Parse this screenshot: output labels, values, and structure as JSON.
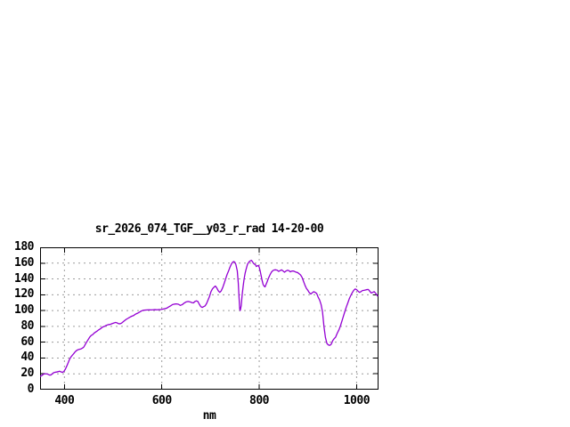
{
  "page": {
    "background": "#ffffff"
  },
  "chart_data": {
    "type": "line",
    "title": "sr_2026_074_TGF__y03_r_rad 14-20-00",
    "xlabel": "nm",
    "ylabel": "",
    "xlim": [
      350,
      1045
    ],
    "ylim": [
      0,
      180
    ],
    "xticks": [
      400,
      600,
      800,
      1000
    ],
    "yticks": [
      0,
      20,
      40,
      60,
      80,
      100,
      120,
      140,
      160,
      180
    ],
    "grid": true,
    "legend": "none",
    "style": {
      "line_color": "#9400D3",
      "grid_color": "#9c9c9c",
      "frame_color": "#000000",
      "text_color": "#000000",
      "background": "#ffffff"
    },
    "series": [
      {
        "points": [
          [
            351,
            17
          ],
          [
            354,
            18
          ],
          [
            357,
            19.5
          ],
          [
            360,
            20
          ],
          [
            363,
            20
          ],
          [
            366,
            19.5
          ],
          [
            369,
            18.5
          ],
          [
            372,
            18.5
          ],
          [
            375,
            20
          ],
          [
            378,
            21.5
          ],
          [
            381,
            22
          ],
          [
            384,
            22.3
          ],
          [
            387,
            22.7
          ],
          [
            390,
            23.3
          ],
          [
            393,
            22.5
          ],
          [
            396,
            21.8
          ],
          [
            399,
            23
          ],
          [
            402,
            26
          ],
          [
            405,
            30
          ],
          [
            408,
            34.5
          ],
          [
            410,
            37.7
          ],
          [
            413,
            41
          ],
          [
            416,
            43.3
          ],
          [
            419,
            45.5
          ],
          [
            422,
            47.8
          ],
          [
            425,
            49.5
          ],
          [
            428,
            50.5
          ],
          [
            431,
            51
          ],
          [
            434,
            51.5
          ],
          [
            437,
            52.5
          ],
          [
            440,
            54
          ],
          [
            443,
            57.5
          ],
          [
            446,
            60.5
          ],
          [
            449,
            63.5
          ],
          [
            452,
            66.5
          ],
          [
            455,
            68.5
          ],
          [
            458,
            69.5
          ],
          [
            461,
            71.5
          ],
          [
            464,
            72.8
          ],
          [
            467,
            74
          ],
          [
            470,
            75.5
          ],
          [
            474,
            77
          ],
          [
            478,
            79
          ],
          [
            482,
            80
          ],
          [
            486,
            81.3
          ],
          [
            490,
            82.2
          ],
          [
            494,
            82.5
          ],
          [
            498,
            83.5
          ],
          [
            502,
            84.4
          ],
          [
            505,
            85
          ],
          [
            508,
            84.5
          ],
          [
            511,
            83.4
          ],
          [
            514,
            83.3
          ],
          [
            517,
            84
          ],
          [
            520,
            85.5
          ],
          [
            523,
            87
          ],
          [
            526,
            88.5
          ],
          [
            530,
            90
          ],
          [
            534,
            91.5
          ],
          [
            538,
            92.8
          ],
          [
            542,
            93.7
          ],
          [
            546,
            95.5
          ],
          [
            550,
            96.6
          ],
          [
            554,
            98
          ],
          [
            558,
            99.5
          ],
          [
            562,
            100.4
          ],
          [
            566,
            100.6
          ],
          [
            570,
            100.8
          ],
          [
            574,
            101
          ],
          [
            578,
            100.8
          ],
          [
            582,
            101
          ],
          [
            586,
            101.2
          ],
          [
            590,
            101
          ],
          [
            594,
            101.2
          ],
          [
            598,
            101.4
          ],
          [
            602,
            101.8
          ],
          [
            606,
            102.4
          ],
          [
            610,
            103
          ],
          [
            614,
            104.5
          ],
          [
            618,
            106
          ],
          [
            622,
            107.6
          ],
          [
            626,
            108.2
          ],
          [
            630,
            108.4
          ],
          [
            634,
            108
          ],
          [
            638,
            106.5
          ],
          [
            642,
            107.5
          ],
          [
            646,
            109.5
          ],
          [
            650,
            111
          ],
          [
            654,
            111.5
          ],
          [
            658,
            111
          ],
          [
            662,
            110
          ],
          [
            665,
            109.7
          ],
          [
            668,
            111.5
          ],
          [
            671,
            112.3
          ],
          [
            674,
            111.5
          ],
          [
            677,
            108
          ],
          [
            680,
            105
          ],
          [
            683,
            104
          ],
          [
            686,
            105
          ],
          [
            689,
            106
          ],
          [
            692,
            109
          ],
          [
            695,
            113.5
          ],
          [
            698,
            118
          ],
          [
            701,
            124
          ],
          [
            704,
            127.5
          ],
          [
            707,
            129.5
          ],
          [
            710,
            131
          ],
          [
            713,
            128.5
          ],
          [
            716,
            125
          ],
          [
            719,
            123
          ],
          [
            722,
            125
          ],
          [
            725,
            129
          ],
          [
            728,
            134.3
          ],
          [
            731,
            140
          ],
          [
            734,
            145.6
          ],
          [
            737,
            150
          ],
          [
            740,
            155
          ],
          [
            743,
            159
          ],
          [
            746,
            161.5
          ],
          [
            748,
            162
          ],
          [
            750,
            161
          ],
          [
            752,
            158.5
          ],
          [
            755,
            150
          ],
          [
            757,
            135
          ],
          [
            759,
            112
          ],
          [
            760,
            102
          ],
          [
            761,
            100
          ],
          [
            763,
            106
          ],
          [
            765,
            120
          ],
          [
            767,
            130.5
          ],
          [
            769,
            140
          ],
          [
            771,
            147
          ],
          [
            773,
            152
          ],
          [
            776,
            158.7
          ],
          [
            779,
            161.5
          ],
          [
            782,
            163
          ],
          [
            784,
            163.5
          ],
          [
            786,
            162
          ],
          [
            788,
            160
          ],
          [
            790,
            158.7
          ],
          [
            792,
            158.5
          ],
          [
            794,
            155.7
          ],
          [
            796,
            156.5
          ],
          [
            798,
            157
          ],
          [
            800,
            155
          ],
          [
            802,
            150
          ],
          [
            804,
            144
          ],
          [
            806,
            138
          ],
          [
            808,
            133
          ],
          [
            810,
            131
          ],
          [
            812,
            130
          ],
          [
            814,
            133
          ],
          [
            816,
            136
          ],
          [
            819,
            141
          ],
          [
            822,
            145
          ],
          [
            825,
            148.5
          ],
          [
            828,
            150.5
          ],
          [
            831,
            151.4
          ],
          [
            834,
            151.5
          ],
          [
            837,
            151
          ],
          [
            840,
            149.5
          ],
          [
            843,
            150.5
          ],
          [
            846,
            151.5
          ],
          [
            849,
            150
          ],
          [
            852,
            148.5
          ],
          [
            855,
            150
          ],
          [
            858,
            151
          ],
          [
            861,
            150.5
          ],
          [
            864,
            149
          ],
          [
            867,
            150
          ],
          [
            870,
            150
          ],
          [
            873,
            149.3
          ],
          [
            876,
            148.5
          ],
          [
            879,
            148
          ],
          [
            882,
            146.5
          ],
          [
            885,
            145
          ],
          [
            888,
            142
          ],
          [
            891,
            137
          ],
          [
            894,
            132
          ],
          [
            897,
            128
          ],
          [
            900,
            125.5
          ],
          [
            903,
            122.5
          ],
          [
            906,
            120.9
          ],
          [
            909,
            122.5
          ],
          [
            912,
            123.9
          ],
          [
            915,
            123
          ],
          [
            918,
            121.6
          ],
          [
            921,
            117
          ],
          [
            924,
            113.4
          ],
          [
            927,
            107.8
          ],
          [
            930,
            98.4
          ],
          [
            933,
            79.7
          ],
          [
            936,
            66
          ],
          [
            939,
            58.5
          ],
          [
            942,
            56.5
          ],
          [
            945,
            56
          ],
          [
            948,
            57.5
          ],
          [
            951,
            62
          ],
          [
            954,
            64.5
          ],
          [
            957,
            66.5
          ],
          [
            960,
            71
          ],
          [
            964,
            76
          ],
          [
            967,
            81
          ],
          [
            970,
            87
          ],
          [
            973,
            93
          ],
          [
            976,
            99
          ],
          [
            979,
            104.7
          ],
          [
            982,
            109.7
          ],
          [
            985,
            115
          ],
          [
            988,
            119
          ],
          [
            991,
            122.5
          ],
          [
            994,
            125.5
          ],
          [
            997,
            127.3
          ],
          [
            1000,
            126.5
          ],
          [
            1003,
            124.5
          ],
          [
            1006,
            123
          ],
          [
            1009,
            124
          ],
          [
            1012,
            125.3
          ],
          [
            1015,
            125.6
          ],
          [
            1018,
            126
          ],
          [
            1021,
            126.5
          ],
          [
            1024,
            126.7
          ],
          [
            1027,
            124.5
          ],
          [
            1030,
            122.2
          ],
          [
            1033,
            123
          ],
          [
            1036,
            124
          ],
          [
            1039,
            122
          ],
          [
            1041,
            120.3
          ],
          [
            1043,
            118.5
          ]
        ]
      }
    ]
  }
}
